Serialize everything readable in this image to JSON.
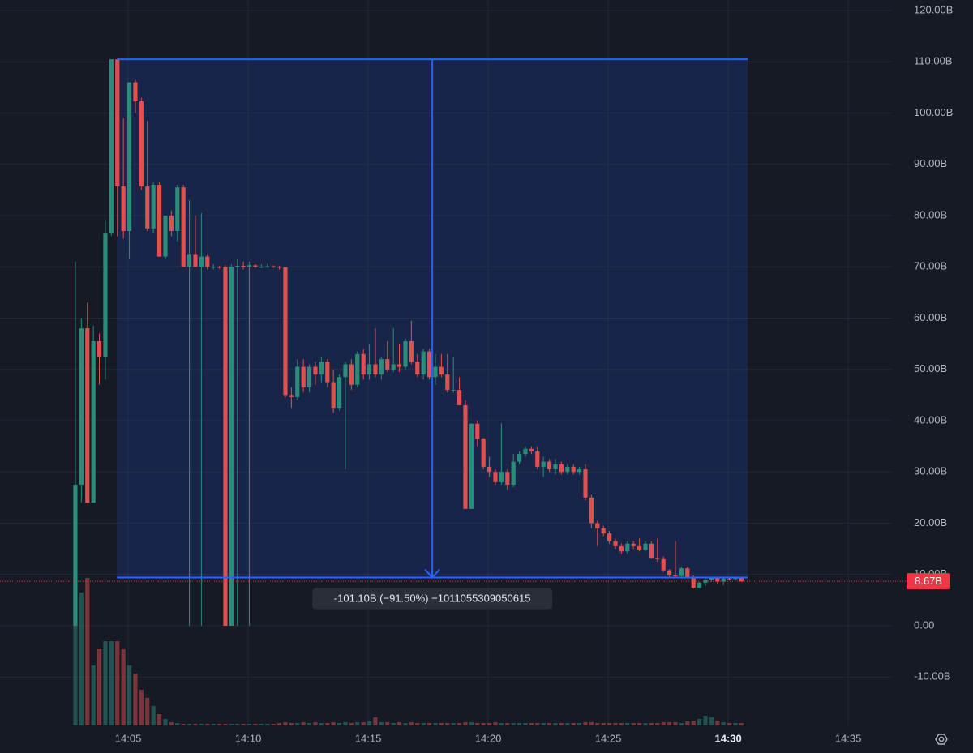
{
  "chart_data": {
    "type": "candlestick",
    "up_color": "#2c8c7c",
    "down_color": "#e0504f",
    "xlim": [
      -0.34,
      36.82
    ],
    "ylim": [
      -19.45,
      122.06
    ],
    "xticks": [
      {
        "value": 5,
        "label": "14:05"
      },
      {
        "value": 10,
        "label": "14:10"
      },
      {
        "value": 15,
        "label": "14:15"
      },
      {
        "value": 20,
        "label": "14:20"
      },
      {
        "value": 25,
        "label": "14:25"
      },
      {
        "value": 30,
        "label": "14:30"
      },
      {
        "value": 35,
        "label": "14:35"
      }
    ],
    "yticks": [
      {
        "value": -10,
        "label": "-10.00B"
      },
      {
        "value": 0,
        "label": "0.00"
      },
      {
        "value": 10,
        "label": "10.00B"
      },
      {
        "value": 20,
        "label": "20.00B"
      },
      {
        "value": 30,
        "label": "30.00B"
      },
      {
        "value": 40,
        "label": "40.00B"
      },
      {
        "value": 50,
        "label": "50.00B"
      },
      {
        "value": 60,
        "label": "60.00B"
      },
      {
        "value": 70,
        "label": "70.00B"
      },
      {
        "value": 80,
        "label": "80.00B"
      },
      {
        "value": 90,
        "label": "90.00B"
      },
      {
        "value": 100,
        "label": "100.00B"
      },
      {
        "value": 110,
        "label": "110.00B"
      },
      {
        "value": 120,
        "label": "120.00B"
      }
    ],
    "grid": true,
    "x": [
      2.8,
      3.05,
      3.3,
      3.55,
      3.8,
      4.05,
      4.3,
      4.55,
      4.8,
      5.05,
      5.3,
      5.55,
      5.8,
      6.05,
      6.3,
      6.55,
      6.8,
      7.05,
      7.3,
      7.55,
      7.8,
      8.05,
      8.3,
      8.55,
      8.8,
      9.05,
      9.3,
      9.55,
      9.8,
      10.05,
      10.3,
      10.55,
      10.8,
      11.05,
      11.3,
      11.55,
      11.8,
      12.05,
      12.3,
      12.55,
      12.8,
      13.05,
      13.3,
      13.55,
      13.8,
      14.05,
      14.3,
      14.55,
      14.8,
      15.05,
      15.3,
      15.55,
      15.8,
      16.05,
      16.3,
      16.55,
      16.8,
      17.05,
      17.3,
      17.55,
      17.8,
      18.05,
      18.3,
      18.55,
      18.8,
      19.05,
      19.3,
      19.55,
      19.8,
      20.05,
      20.3,
      20.55,
      20.8,
      21.05,
      21.3,
      21.55,
      21.8,
      22.05,
      22.3,
      22.55,
      22.8,
      23.05,
      23.3,
      23.55,
      23.8,
      24.05,
      24.3,
      24.55,
      24.8,
      25.05,
      25.3,
      25.55,
      25.8,
      26.05,
      26.3,
      26.55,
      26.8,
      27.05,
      27.3,
      27.55,
      27.8,
      28.05,
      28.3,
      28.55,
      28.8,
      29.05,
      29.3,
      29.55,
      29.8,
      30.05,
      30.3,
      30.55
    ],
    "ohlc": [
      [
        0,
        71,
        0,
        27.5
      ],
      [
        27.5,
        60,
        24,
        58
      ],
      [
        58,
        63,
        24,
        24
      ],
      [
        24,
        58.5,
        24,
        55.5
      ],
      [
        55.5,
        57,
        47,
        52.5
      ],
      [
        52.5,
        79,
        48,
        76.5
      ],
      [
        76.5,
        110.5,
        76,
        110.5
      ],
      [
        110.5,
        110.5,
        76,
        85.7
      ],
      [
        85.7,
        99,
        75.5,
        77
      ],
      [
        77,
        106,
        71.5,
        106
      ],
      [
        106,
        106.5,
        100,
        102.3
      ],
      [
        102.3,
        103,
        85,
        85.7
      ],
      [
        85.7,
        98.5,
        77,
        77.5
      ],
      [
        77.5,
        86.5,
        76.5,
        86
      ],
      [
        86,
        86.5,
        72,
        72
      ],
      [
        72,
        80,
        71.5,
        80
      ],
      [
        80,
        81,
        76,
        77
      ],
      [
        77,
        86,
        75,
        85.5
      ],
      [
        85.5,
        86,
        70,
        70
      ],
      [
        70,
        83,
        0,
        72.5
      ],
      [
        72.5,
        80,
        70,
        70
      ],
      [
        70,
        80.5,
        0,
        72
      ],
      [
        72,
        72.5,
        69.5,
        70
      ],
      [
        70,
        70.5,
        69.5,
        70
      ],
      [
        70,
        70.2,
        69.6,
        69.9
      ],
      [
        70,
        70.3,
        0,
        0
      ],
      [
        0,
        70.5,
        0,
        70
      ],
      [
        70,
        71.5,
        0,
        70.2
      ],
      [
        70.2,
        71,
        69.5,
        70
      ],
      [
        70,
        71,
        0,
        70.3
      ],
      [
        70.3,
        70.5,
        69.8,
        70
      ],
      [
        70,
        70.5,
        69.8,
        70
      ],
      [
        70,
        70.6,
        69.8,
        70.1
      ],
      [
        70.1,
        70.3,
        69.8,
        70
      ],
      [
        70,
        70.2,
        69.5,
        69.9
      ],
      [
        69.9,
        70,
        44.5,
        45
      ],
      [
        45,
        46.5,
        42.5,
        44.6
      ],
      [
        44.6,
        52,
        44,
        50.5
      ],
      [
        50.5,
        52,
        45.5,
        46.5
      ],
      [
        46.5,
        51,
        45.5,
        50.5
      ],
      [
        50.5,
        51.5,
        47,
        49
      ],
      [
        49,
        52.5,
        47.5,
        51.5
      ],
      [
        51.5,
        52,
        46.5,
        47.5
      ],
      [
        47.5,
        50,
        41.5,
        42.5
      ],
      [
        42.5,
        49,
        42,
        48.5
      ],
      [
        48.5,
        51.5,
        30.5,
        51
      ],
      [
        51,
        52,
        46,
        47
      ],
      [
        47,
        53.5,
        46.5,
        53
      ],
      [
        53,
        54,
        48,
        49
      ],
      [
        49,
        55,
        48,
        51
      ],
      [
        51,
        58,
        48.5,
        49
      ],
      [
        49,
        52.5,
        48,
        52
      ],
      [
        52,
        55.5,
        49.5,
        50
      ],
      [
        50,
        58,
        49.5,
        51
      ],
      [
        51,
        55,
        49.5,
        50.5
      ],
      [
        50.5,
        56,
        50,
        55.5
      ],
      [
        55.5,
        59.5,
        51,
        51.5
      ],
      [
        51.5,
        53,
        48.5,
        49
      ],
      [
        49,
        54,
        48,
        53.5
      ],
      [
        53.5,
        54,
        48,
        48.5
      ],
      [
        48.5,
        53,
        47,
        50.5
      ],
      [
        50.5,
        53,
        48.5,
        49
      ],
      [
        49,
        53,
        45.5,
        46
      ],
      [
        46,
        52.5,
        45.5,
        46
      ],
      [
        46,
        48.5,
        43,
        43
      ],
      [
        43,
        44,
        22.8,
        22.8
      ],
      [
        22.8,
        39.5,
        22.8,
        39.4
      ],
      [
        39.4,
        40,
        35,
        36.5
      ],
      [
        36.5,
        36.7,
        30.5,
        31
      ],
      [
        31,
        33,
        29,
        30
      ],
      [
        30,
        30.5,
        27.5,
        28
      ],
      [
        28,
        39.5,
        27.5,
        30
      ],
      [
        30,
        30.5,
        26.5,
        27.5
      ],
      [
        27.5,
        33.5,
        27,
        32
      ],
      [
        32,
        34,
        31.5,
        33.5
      ],
      [
        33.5,
        35,
        33,
        34.5
      ],
      [
        34.5,
        35,
        33.5,
        34
      ],
      [
        34,
        35,
        30.5,
        31
      ],
      [
        31,
        33,
        29,
        32
      ],
      [
        32,
        32.5,
        30,
        30.5
      ],
      [
        30.5,
        32.5,
        29.5,
        31.5
      ],
      [
        31.5,
        32,
        29.5,
        30
      ],
      [
        30,
        31.5,
        29.5,
        31
      ],
      [
        31,
        31.5,
        29.5,
        30
      ],
      [
        30,
        31,
        29.5,
        30.5
      ],
      [
        30.5,
        31.5,
        24.5,
        25
      ],
      [
        25,
        25.5,
        19,
        20
      ],
      [
        20,
        20.5,
        15.5,
        19
      ],
      [
        19,
        19.5,
        17.5,
        18
      ],
      [
        18,
        18.5,
        16,
        16.5
      ],
      [
        16.5,
        17,
        15,
        15.5
      ],
      [
        15.5,
        16,
        14,
        14.5
      ],
      [
        14.5,
        16.5,
        14,
        16
      ],
      [
        16,
        16.5,
        15,
        15.5
      ],
      [
        15.5,
        17,
        14.5,
        14.8
      ],
      [
        14.8,
        16.5,
        14.5,
        16
      ],
      [
        16,
        16.5,
        13,
        13.2
      ],
      [
        13.2,
        17,
        12.5,
        13
      ],
      [
        13,
        13.5,
        10.5,
        10.8
      ],
      [
        10.8,
        11,
        9.5,
        9.8
      ],
      [
        9.8,
        16.5,
        9.5,
        9.7
      ],
      [
        9.7,
        11.5,
        9.2,
        11.2
      ],
      [
        11.2,
        11.5,
        9.2,
        9.4
      ],
      [
        9.4,
        9.8,
        7.2,
        7.4
      ],
      [
        7.4,
        8.6,
        7.2,
        8.4
      ],
      [
        8.4,
        9.2,
        7.8,
        9
      ],
      [
        9,
        9.5,
        8.6,
        9.3
      ],
      [
        9.3,
        9.5,
        8.2,
        8.6
      ],
      [
        8.6,
        9.4,
        7.9,
        9.2
      ],
      [
        9.2,
        9.5,
        8.8,
        9.1
      ],
      [
        9.1,
        9.4,
        8.8,
        9.3
      ],
      [
        9.3,
        9.5,
        8.5,
        8.67
      ]
    ],
    "volume": [
      92,
      82,
      91,
      37,
      47,
      52,
      52,
      52,
      47,
      37,
      32,
      22,
      17,
      12,
      7,
      4,
      2,
      1.5,
      1,
      1,
      1,
      1,
      1,
      1,
      1,
      1,
      1,
      1,
      1,
      1,
      1,
      1,
      1,
      1,
      1.5,
      2,
      1.5,
      1.5,
      2,
      1.5,
      2,
      1.5,
      1.5,
      2,
      1.5,
      2,
      1.5,
      2,
      2,
      2.5,
      5,
      2,
      2,
      1.5,
      2,
      1.5,
      2,
      1.5,
      1.5,
      1.5,
      1.5,
      1.5,
      1.5,
      1.5,
      1.5,
      2,
      2,
      1.5,
      1.5,
      1.5,
      2,
      1.5,
      1.5,
      1.5,
      1.5,
      1.5,
      1.5,
      1.5,
      1.5,
      1.5,
      1.5,
      1.5,
      1.5,
      1.5,
      1.5,
      2,
      2,
      1.5,
      1.5,
      1.5,
      1.5,
      1.5,
      1.5,
      1.5,
      1.5,
      1.5,
      1.5,
      1.5,
      2,
      2,
      2,
      1.5,
      2.5,
      3,
      4,
      6,
      5,
      3,
      2,
      1.5,
      1.5,
      1.5
    ],
    "measure": {
      "from_time": 4.53,
      "to_time": 30.81,
      "from_price": 110.5,
      "to_price": 9.4,
      "color": "#2962ff",
      "label": "-101.10B (−91.50%) −1011055309050615"
    },
    "last_price": {
      "value": 8.67,
      "label": "8.67B",
      "color": "#f23645"
    }
  }
}
